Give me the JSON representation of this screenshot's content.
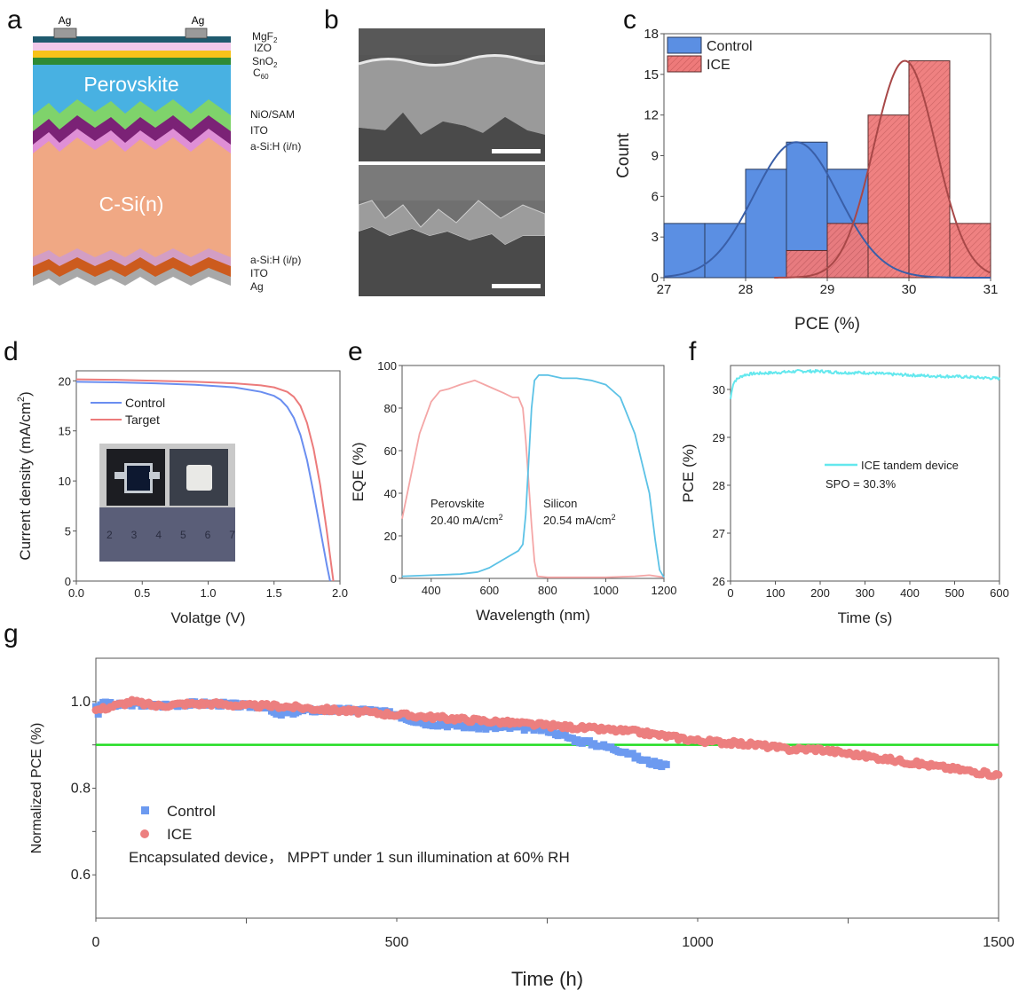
{
  "panels": {
    "a": {
      "letter": "a",
      "contact_labels": [
        "Ag",
        "Ag"
      ],
      "big_labels": {
        "perovskite": "Perovskite",
        "silicon": "C-Si(n)"
      },
      "layer_labels_top": [
        {
          "text": "MgF",
          "sub": "2"
        },
        {
          "text": "IZO",
          "sub": ""
        },
        {
          "text": "SnO",
          "sub": "2"
        },
        {
          "text": "C",
          "sub": "60"
        }
      ],
      "layer_labels_mid": [
        "NiO/SAM",
        "ITO",
        "a-Si:H (i/n)"
      ],
      "layer_labels_bottom": [
        "a-Si:H (i/p)",
        "ITO",
        "Ag"
      ],
      "colors": {
        "mgf2": "#1f5a6e",
        "izo": "#f1c9ea",
        "sno2": "#f7c21a",
        "c60": "#2e8a34",
        "perovskite": "#48b1e2",
        "nio_sam": "#7fd36b",
        "ito_top": "#7b2276",
        "asi_in": "#df8fd6",
        "csi": "#f0a884",
        "asi_ip": "#d39ec4",
        "ito_bottom": "#cc5b1e",
        "ag_bottom": "#a8a8a8",
        "ag_contact": "#9a9a9a"
      }
    },
    "b": {
      "letter": "b",
      "images": [
        "SEM cross-section (perovskite on textured Si)",
        "SEM cross-section (textured Si)"
      ]
    },
    "c": {
      "letter": "c"
    },
    "d": {
      "letter": "d",
      "inset": {
        "ruler_numbers": [
          "2",
          "3",
          "4",
          "5",
          "6",
          "7"
        ]
      }
    },
    "e": {
      "letter": "e"
    },
    "f": {
      "letter": "f"
    },
    "g": {
      "letter": "g"
    }
  },
  "chart_data": [
    {
      "id": "c",
      "type": "bar",
      "subtype": "histogram",
      "xlabel": "PCE (%)",
      "ylabel": "Count",
      "xlim": [
        27,
        31
      ],
      "ylim": [
        0,
        18
      ],
      "xticks": [
        "27",
        "28",
        "29",
        "30",
        "31"
      ],
      "yticks": [
        "0",
        "3",
        "6",
        "9",
        "12",
        "15",
        "18"
      ],
      "legend": {
        "position": "top-left",
        "entries": [
          "Control",
          "ICE"
        ]
      },
      "bin_edges": [
        27.0,
        27.5,
        28.0,
        28.5,
        29.0,
        29.5,
        30.0,
        30.5,
        31.0
      ],
      "series": [
        {
          "name": "Control",
          "color": "#5b8fe3",
          "edge": "#2a3a5a",
          "counts": [
            4,
            4,
            8,
            10,
            8,
            0,
            0,
            0
          ],
          "fit": {
            "mean": 28.62,
            "sigma": 0.52,
            "peak": 10,
            "color": "#3a5fa8"
          }
        },
        {
          "name": "ICE",
          "color": "#ee7a7a",
          "edge": "#5a2a2a",
          "hatched": true,
          "counts": [
            0,
            0,
            0,
            2,
            4,
            12,
            16,
            4
          ],
          "fit": {
            "mean": 29.95,
            "sigma": 0.38,
            "peak": 16,
            "color": "#a84848"
          }
        }
      ]
    },
    {
      "id": "d",
      "type": "line",
      "xlabel": "Volatge (V)",
      "ylabel": "Current density (mA/cm",
      "ylabel_sup": "2",
      "ylabel_end": ")",
      "xlim": [
        0,
        2.0
      ],
      "ylim": [
        0,
        21
      ],
      "xticks": [
        "0.0",
        "0.5",
        "1.0",
        "1.5",
        "2.0"
      ],
      "yticks": [
        "0",
        "5",
        "10",
        "15",
        "20"
      ],
      "legend": {
        "position": "top-left",
        "entries": [
          "Control",
          "Target"
        ]
      },
      "series": [
        {
          "name": "Control",
          "color": "#6a8ef0",
          "jsc": 19.9,
          "voc": 1.925,
          "x": [
            0,
            0.3,
            0.6,
            0.9,
            1.2,
            1.4,
            1.5,
            1.55,
            1.6,
            1.65,
            1.7,
            1.75,
            1.8,
            1.85,
            1.9,
            1.925
          ],
          "y": [
            19.9,
            19.85,
            19.75,
            19.6,
            19.35,
            18.9,
            18.5,
            18.1,
            17.4,
            16.3,
            14.6,
            12.1,
            8.8,
            5.2,
            1.6,
            0
          ]
        },
        {
          "name": "Target",
          "color": "#ec7b7b",
          "jsc": 20.15,
          "voc": 1.95,
          "x": [
            0,
            0.3,
            0.6,
            0.9,
            1.2,
            1.4,
            1.5,
            1.6,
            1.65,
            1.7,
            1.75,
            1.8,
            1.85,
            1.9,
            1.93,
            1.95
          ],
          "y": [
            20.15,
            20.1,
            20.0,
            19.9,
            19.75,
            19.55,
            19.35,
            18.9,
            18.4,
            17.5,
            15.8,
            13.2,
            9.6,
            5.0,
            2.0,
            0
          ]
        }
      ]
    },
    {
      "id": "e",
      "type": "line",
      "xlabel": "Wavelength (nm)",
      "ylabel": "EQE (%)",
      "xlim": [
        300,
        1200
      ],
      "ylim": [
        0,
        100
      ],
      "xticks": [
        "400",
        "600",
        "800",
        "1000",
        "1200"
      ],
      "yticks": [
        "0",
        "20",
        "40",
        "60",
        "80",
        "100"
      ],
      "annotations": [
        {
          "lines": [
            "Perovskite",
            "20.40 mA/cm"
          ],
          "sup": "2"
        },
        {
          "lines": [
            "Silicon",
            "20.54 mA/cm"
          ],
          "sup": "2"
        }
      ],
      "series": [
        {
          "name": "Perovskite",
          "color": "#f4a6a6",
          "x": [
            300,
            330,
            360,
            400,
            430,
            460,
            500,
            550,
            600,
            650,
            680,
            700,
            715,
            725,
            735,
            745,
            755,
            765,
            800,
            900,
            1000,
            1100,
            1150,
            1200
          ],
          "y": [
            28,
            48,
            68,
            83,
            88,
            89,
            91,
            93,
            90,
            87,
            85,
            85,
            80,
            65,
            45,
            25,
            8,
            1,
            0.5,
            0.5,
            0.5,
            1,
            1.5,
            0.5
          ]
        },
        {
          "name": "Silicon",
          "color": "#5cc2e6",
          "x": [
            300,
            400,
            500,
            560,
            600,
            650,
            700,
            715,
            725,
            735,
            745,
            755,
            770,
            800,
            850,
            900,
            950,
            1000,
            1050,
            1100,
            1150,
            1170,
            1185,
            1200
          ],
          "y": [
            1,
            1.5,
            2,
            3,
            5,
            9,
            13,
            16,
            30,
            55,
            80,
            93,
            95.5,
            95.5,
            94,
            94,
            93,
            91,
            85,
            68,
            40,
            18,
            4,
            0.5
          ]
        }
      ]
    },
    {
      "id": "f",
      "type": "line",
      "xlabel": "Time (s)",
      "ylabel": "PCE (%)",
      "xlim": [
        0,
        600
      ],
      "ylim": [
        26,
        30.5
      ],
      "xticks": [
        "0",
        "100",
        "200",
        "300",
        "400",
        "500",
        "600"
      ],
      "yticks": [
        "26",
        "27",
        "28",
        "29",
        "30"
      ],
      "legend": {
        "position": "center-right",
        "entries": [
          "ICE tandem device"
        ]
      },
      "annotation": "SPO = 30.3%",
      "series": [
        {
          "name": "ICE tandem device",
          "color": "#64e8ee",
          "x": [
            0,
            5,
            10,
            20,
            30,
            50,
            100,
            150,
            200,
            250,
            300,
            350,
            400,
            450,
            500,
            550,
            600
          ],
          "y": [
            29.8,
            30.1,
            30.18,
            30.25,
            30.3,
            30.33,
            30.35,
            30.38,
            30.38,
            30.35,
            30.35,
            30.32,
            30.3,
            30.28,
            30.27,
            30.25,
            30.23
          ]
        }
      ]
    },
    {
      "id": "g",
      "type": "scatter",
      "xlabel": "Time (h)",
      "ylabel": "Normalized PCE (%)",
      "xlim": [
        0,
        1500
      ],
      "ylim": [
        0.5,
        1.1
      ],
      "xticks": [
        "0",
        "500",
        "1000",
        "1500"
      ],
      "yticks": [
        "0.6",
        "0.8",
        "1.0"
      ],
      "reference_line": {
        "y": 0.9,
        "color": "#22dd22"
      },
      "legend": {
        "position": "bottom-left",
        "entries": [
          "Control",
          "ICE"
        ]
      },
      "annotation": "Encapsulated device， MPPT under 1 sun illumination at 60% RH",
      "series": [
        {
          "name": "Control",
          "marker": "square",
          "color": "#6c9af0",
          "x": [
            0,
            5,
            10,
            30,
            60,
            100,
            150,
            200,
            250,
            280,
            300,
            350,
            400,
            450,
            500,
            520,
            550,
            600,
            650,
            700,
            750,
            780,
            800,
            820,
            850,
            880,
            900,
            920,
            940,
            950
          ],
          "y": [
            0.99,
            0.97,
            1.0,
            0.99,
            0.995,
            0.99,
            0.995,
            0.995,
            0.99,
            0.99,
            0.97,
            0.98,
            0.98,
            0.98,
            0.97,
            0.96,
            0.95,
            0.945,
            0.94,
            0.94,
            0.935,
            0.92,
            0.91,
            0.905,
            0.895,
            0.885,
            0.87,
            0.86,
            0.855,
            0.86
          ]
        },
        {
          "name": "ICE",
          "marker": "circle",
          "color": "#ec7f7f",
          "x": [
            0,
            30,
            60,
            100,
            150,
            200,
            250,
            300,
            350,
            400,
            450,
            500,
            550,
            600,
            650,
            700,
            750,
            800,
            850,
            900,
            950,
            1000,
            1050,
            1100,
            1150,
            1200,
            1250,
            1300,
            1350,
            1400,
            1450,
            1500
          ],
          "y": [
            0.98,
            0.99,
            1.0,
            0.99,
            0.995,
            0.995,
            0.99,
            0.99,
            0.985,
            0.98,
            0.975,
            0.97,
            0.965,
            0.96,
            0.955,
            0.95,
            0.945,
            0.94,
            0.935,
            0.93,
            0.92,
            0.91,
            0.905,
            0.9,
            0.89,
            0.89,
            0.88,
            0.87,
            0.86,
            0.85,
            0.84,
            0.83
          ]
        }
      ]
    }
  ]
}
